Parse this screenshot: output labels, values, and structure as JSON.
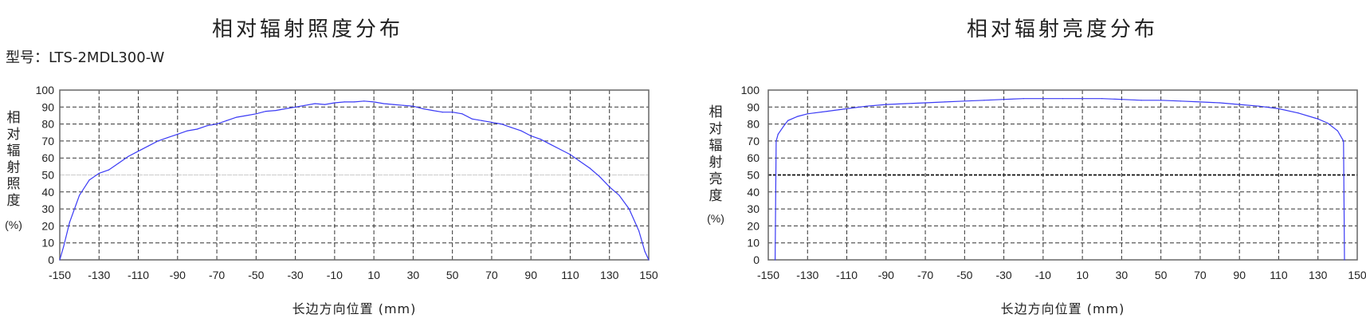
{
  "model_label": "型号：LTS-2MDL300-W",
  "colors": {
    "line": "#3a3af5",
    "grid": "#333333",
    "axis": "#666666"
  },
  "chart_data": [
    {
      "type": "line",
      "title": "相对辐射照度分布",
      "xlabel": "长边方向位置 (mm)",
      "ylabel_chars": [
        "相",
        "对",
        "辐",
        "射",
        "照",
        "度"
      ],
      "ylabel_unit": "(%)",
      "xlim": [
        -150,
        150
      ],
      "ylim": [
        0,
        100
      ],
      "xticks": [
        -150,
        -130,
        -110,
        -90,
        -70,
        -50,
        -30,
        -10,
        10,
        30,
        50,
        70,
        90,
        110,
        130,
        150
      ],
      "yticks": [
        0,
        10,
        20,
        30,
        40,
        50,
        60,
        70,
        80,
        90,
        100
      ],
      "grid": true,
      "grid_50_style": "light-solid",
      "x": [
        -150,
        -148,
        -145,
        -140,
        -135,
        -130,
        -125,
        -120,
        -115,
        -110,
        -105,
        -100,
        -95,
        -90,
        -85,
        -80,
        -75,
        -70,
        -65,
        -60,
        -55,
        -50,
        -45,
        -40,
        -35,
        -30,
        -25,
        -20,
        -15,
        -10,
        -5,
        0,
        5,
        10,
        15,
        20,
        25,
        30,
        35,
        40,
        45,
        50,
        55,
        60,
        65,
        70,
        75,
        80,
        85,
        90,
        95,
        100,
        105,
        110,
        115,
        120,
        125,
        130,
        135,
        140,
        145,
        148,
        150
      ],
      "y": [
        0,
        8,
        22,
        38,
        47,
        51,
        53,
        57,
        61,
        64,
        67,
        70,
        72,
        74,
        76,
        77,
        79,
        80,
        82,
        84,
        85,
        86,
        87.5,
        88,
        89,
        90,
        91,
        92,
        91.5,
        92.5,
        93,
        93,
        93.5,
        93,
        92,
        91.5,
        91,
        90.5,
        89,
        88,
        87,
        87,
        86,
        83,
        82,
        81,
        80,
        78,
        76,
        73,
        71,
        68,
        65,
        62,
        58,
        54,
        49,
        43,
        38,
        30,
        17,
        5,
        0
      ]
    },
    {
      "type": "line",
      "title": "相对辐射亮度分布",
      "xlabel": "长边方向位置 (mm)",
      "ylabel_chars": [
        "相",
        "对",
        "辐",
        "射",
        "亮",
        "度"
      ],
      "ylabel_unit": "(%)",
      "xlim": [
        -150,
        150
      ],
      "ylim": [
        0,
        100
      ],
      "xticks": [
        -150,
        -130,
        -110,
        -90,
        -70,
        -50,
        -30,
        -10,
        10,
        30,
        50,
        70,
        90,
        110,
        130,
        150
      ],
      "yticks": [
        0,
        10,
        20,
        30,
        40,
        50,
        60,
        70,
        80,
        90,
        100
      ],
      "grid": true,
      "grid_50_style": "dark-dashed",
      "x": [
        -146.5,
        -146,
        -145,
        -142,
        -140,
        -135,
        -130,
        -120,
        -110,
        -100,
        -90,
        -80,
        -70,
        -60,
        -50,
        -40,
        -30,
        -20,
        -10,
        0,
        10,
        20,
        30,
        40,
        50,
        60,
        70,
        80,
        90,
        100,
        110,
        120,
        130,
        135,
        140,
        143,
        143.5
      ],
      "y": [
        0,
        70,
        74,
        79,
        82,
        84.5,
        86,
        87.5,
        89,
        90.5,
        91.5,
        92,
        92.5,
        93,
        93.5,
        94,
        94.5,
        95,
        95,
        95,
        95,
        95,
        94.5,
        94,
        94,
        93.5,
        93,
        92.5,
        91.5,
        90.5,
        89,
        86.5,
        83,
        80.5,
        76,
        70,
        0
      ]
    }
  ]
}
